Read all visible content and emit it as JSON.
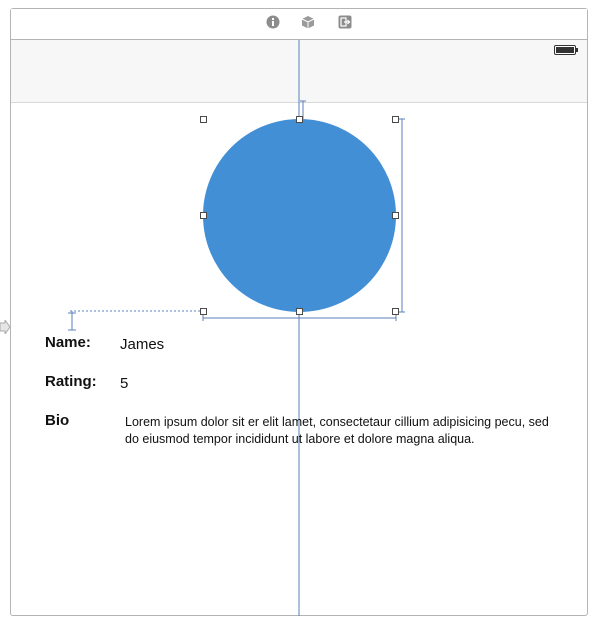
{
  "dock": {
    "icons": [
      "view-controller-icon",
      "first-responder-icon",
      "exit-icon"
    ]
  },
  "status_bar": {
    "battery_icon": "battery-icon"
  },
  "colors": {
    "photo_fill": "#428fd6",
    "guide": "#5a7fb8",
    "frame_border": "#b4b4b4"
  },
  "content": {
    "name_label": "Name:",
    "name_value": "James",
    "rating_label": "Rating:",
    "rating_value": "5",
    "bio_label": "Bio",
    "bio_text": "Lorem ipsum dolor sit er elit lamet, consectetaur cillium adipisicing pecu, sed do eiusmod tempor incididunt ut labore et dolore magna aliqua."
  }
}
